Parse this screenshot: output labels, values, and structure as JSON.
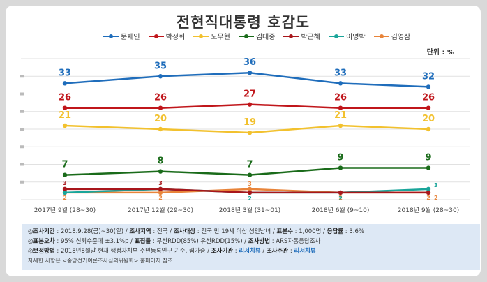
{
  "title": "전현직대통령 호감도",
  "unit": "단위 : %",
  "chart_data": {
    "type": "line",
    "title": "전현직대통령 호감도",
    "categories": [
      "2017년 9월 (28~30)",
      "2017년 12월 (29~30)",
      "2018년 3월 (31~01)",
      "2018년 6월 (9~10)",
      "2018년 9월 (28~30)"
    ],
    "ylim": [
      0,
      40
    ],
    "grid": true,
    "legend_position": "top",
    "series": [
      {
        "name": "문재인",
        "color": "#1f6dbb",
        "values": [
          33,
          35,
          36,
          33,
          32
        ]
      },
      {
        "name": "박정희",
        "color": "#c0161b",
        "values": [
          26,
          26,
          27,
          26,
          26
        ]
      },
      {
        "name": "노무현",
        "color": "#f2c12e",
        "values": [
          21,
          20,
          19,
          21,
          20
        ]
      },
      {
        "name": "김대중",
        "color": "#1a6b1a",
        "values": [
          7,
          8,
          7,
          9,
          9
        ]
      },
      {
        "name": "박근혜",
        "color": "#a8161b",
        "values": [
          3,
          3,
          2,
          2,
          2
        ]
      },
      {
        "name": "이명박",
        "color": "#1aa59a",
        "values": [
          2,
          3,
          2,
          2,
          3
        ]
      },
      {
        "name": "김영삼",
        "color": "#e8843a",
        "values": [
          2,
          2,
          3,
          2,
          2
        ]
      }
    ],
    "labeled_series": [
      "문재인",
      "박정희",
      "노무현",
      "김대중"
    ],
    "label_colors": {
      "문재인": "#1f6dbb",
      "박정희": "#c0161b",
      "노무현": "#f2c12e",
      "김대중": "#1a6b1a"
    }
  },
  "info": {
    "line1": [
      {
        "t": "◎",
        "s": "n"
      },
      {
        "t": "조사기간",
        "s": "b"
      },
      {
        "t": " : 2018.9.28(금)~30(일) / ",
        "s": "n"
      },
      {
        "t": "조사지역",
        "s": "b"
      },
      {
        "t": " : 전국 / ",
        "s": "n"
      },
      {
        "t": "조사대상",
        "s": "b"
      },
      {
        "t": " : 전국 만 19세 이상 성인남녀 / ",
        "s": "n"
      },
      {
        "t": "표본수",
        "s": "b"
      },
      {
        "t": " : 1,000명 / ",
        "s": "n"
      },
      {
        "t": "응답률",
        "s": "b"
      },
      {
        "t": " : 3.6%",
        "s": "n"
      }
    ],
    "line2": [
      {
        "t": "◎",
        "s": "n"
      },
      {
        "t": "표본오차",
        "s": "b"
      },
      {
        "t": " : 95% 신뢰수준에 ±3.1%p / ",
        "s": "n"
      },
      {
        "t": "표집틀",
        "s": "b"
      },
      {
        "t": " : 무선RDD(85%) 유선RDD(15%) / ",
        "s": "n"
      },
      {
        "t": "조사방법",
        "s": "b"
      },
      {
        "t": " : ARS자동응답조사",
        "s": "n"
      }
    ],
    "line3": [
      {
        "t": "◎",
        "s": "n"
      },
      {
        "t": "보정방법",
        "s": "b"
      },
      {
        "t": " : 2018년8월말 현재 행정자치부 주민등록인구 기준, 림가중 / ",
        "s": "n"
      },
      {
        "t": "조사기관",
        "s": "b"
      },
      {
        "t": " : ",
        "s": "n"
      },
      {
        "t": "리서치뷰",
        "s": "blue"
      },
      {
        "t": " / ",
        "s": "n"
      },
      {
        "t": "조사주관",
        "s": "b"
      },
      {
        "t": " : ",
        "s": "n"
      },
      {
        "t": "리서치뷰",
        "s": "blue"
      }
    ],
    "line4": "자세한 사항은 <중앙선거여론조사심의위원회> 홈페이지 참조"
  }
}
